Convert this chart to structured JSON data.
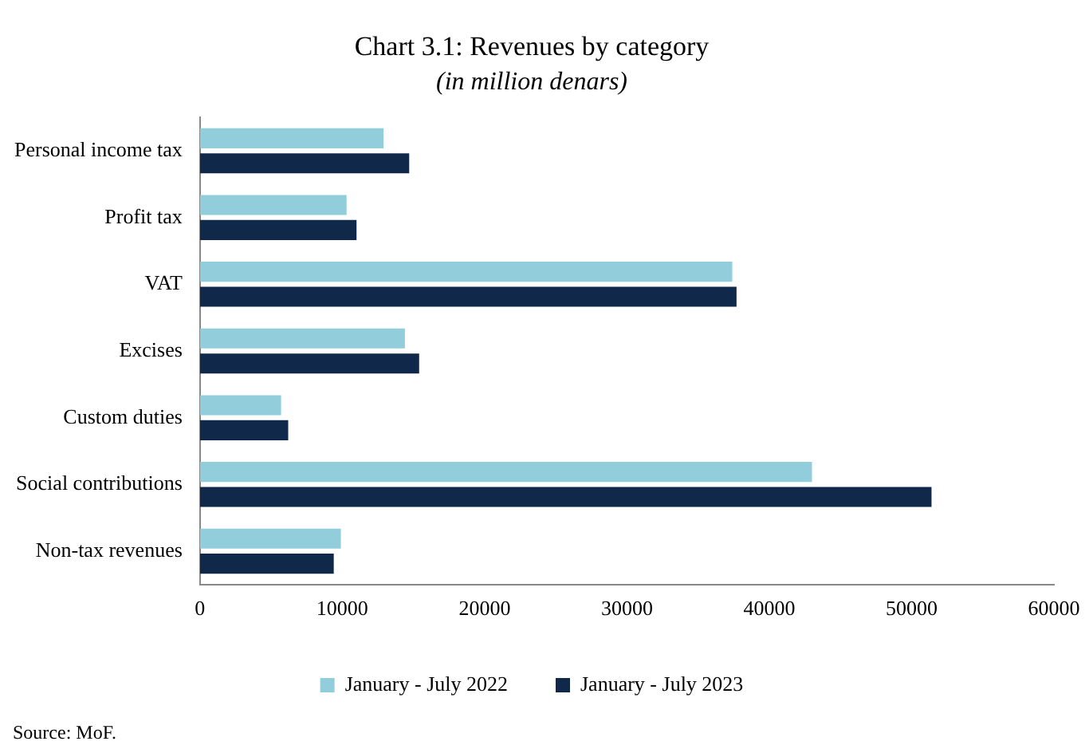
{
  "chart_data": {
    "type": "bar",
    "orientation": "horizontal",
    "title": "Chart 3.1: Revenues by category",
    "subtitle": "(in million denars)",
    "categories": [
      "Personal income tax",
      "Profit tax",
      "VAT",
      "Excises",
      "Custom duties",
      "Social contributions",
      "Non-tax revenues"
    ],
    "series": [
      {
        "name": "January - July 2022",
        "color": "#92cddc",
        "values": [
          12900,
          10300,
          37400,
          14400,
          5700,
          43000,
          9900
        ]
      },
      {
        "name": "January - July 2023",
        "color": "#10294a",
        "values": [
          14700,
          11000,
          37700,
          15400,
          6200,
          51400,
          9400
        ]
      }
    ],
    "xlim": [
      0,
      60000
    ],
    "xticks": [
      0,
      10000,
      20000,
      30000,
      40000,
      50000,
      60000
    ],
    "grid": false,
    "legend": "bottom",
    "annotations": [
      "Source: MoF."
    ]
  }
}
